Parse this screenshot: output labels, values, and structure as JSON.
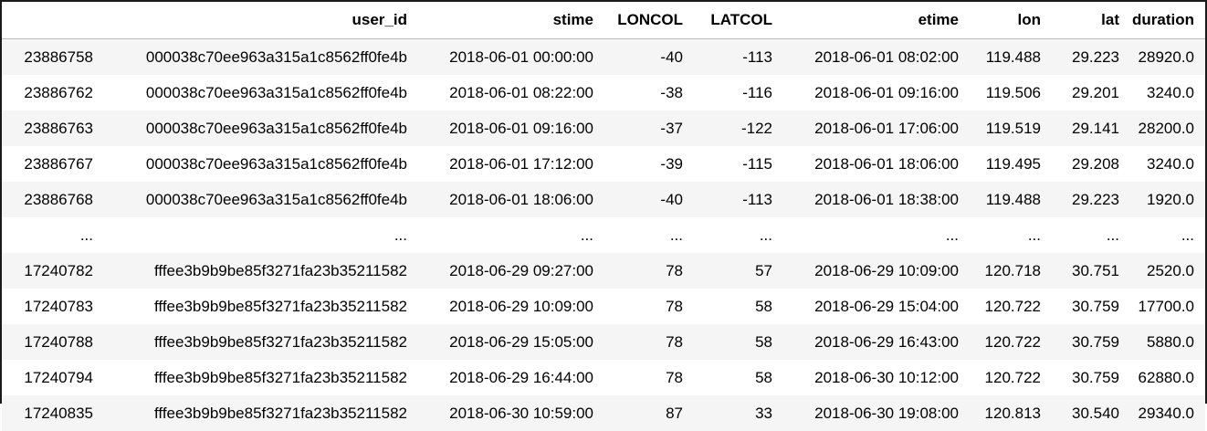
{
  "table": {
    "columns": [
      "",
      "user_id",
      "stime",
      "LONCOL",
      "LATCOL",
      "etime",
      "lon",
      "lat",
      "duration"
    ],
    "rows": [
      [
        "23886758",
        "000038c70ee963a315a1c8562ff0fe4b",
        "2018-06-01 00:00:00",
        "-40",
        "-113",
        "2018-06-01 08:02:00",
        "119.488",
        "29.223",
        "28920.0"
      ],
      [
        "23886762",
        "000038c70ee963a315a1c8562ff0fe4b",
        "2018-06-01 08:22:00",
        "-38",
        "-116",
        "2018-06-01 09:16:00",
        "119.506",
        "29.201",
        "3240.0"
      ],
      [
        "23886763",
        "000038c70ee963a315a1c8562ff0fe4b",
        "2018-06-01 09:16:00",
        "-37",
        "-122",
        "2018-06-01 17:06:00",
        "119.519",
        "29.141",
        "28200.0"
      ],
      [
        "23886767",
        "000038c70ee963a315a1c8562ff0fe4b",
        "2018-06-01 17:12:00",
        "-39",
        "-115",
        "2018-06-01 18:06:00",
        "119.495",
        "29.208",
        "3240.0"
      ],
      [
        "23886768",
        "000038c70ee963a315a1c8562ff0fe4b",
        "2018-06-01 18:06:00",
        "-40",
        "-113",
        "2018-06-01 18:38:00",
        "119.488",
        "29.223",
        "1920.0"
      ],
      [
        "...",
        "...",
        "...",
        "...",
        "...",
        "...",
        "...",
        "...",
        "..."
      ],
      [
        "17240782",
        "fffee3b9b9be85f3271fa23b35211582",
        "2018-06-29 09:27:00",
        "78",
        "57",
        "2018-06-29 10:09:00",
        "120.718",
        "30.751",
        "2520.0"
      ],
      [
        "17240783",
        "fffee3b9b9be85f3271fa23b35211582",
        "2018-06-29 10:09:00",
        "78",
        "58",
        "2018-06-29 15:04:00",
        "120.722",
        "30.759",
        "17700.0"
      ],
      [
        "17240788",
        "fffee3b9b9be85f3271fa23b35211582",
        "2018-06-29 15:05:00",
        "78",
        "58",
        "2018-06-29 16:43:00",
        "120.722",
        "30.759",
        "5880.0"
      ],
      [
        "17240794",
        "fffee3b9b9be85f3271fa23b35211582",
        "2018-06-29 16:44:00",
        "78",
        "58",
        "2018-06-30 10:12:00",
        "120.722",
        "30.759",
        "62880.0"
      ],
      [
        "17240835",
        "fffee3b9b9be85f3271fa23b35211582",
        "2018-06-30 10:59:00",
        "87",
        "33",
        "2018-06-30 19:08:00",
        "120.813",
        "30.540",
        "29340.0"
      ]
    ]
  }
}
